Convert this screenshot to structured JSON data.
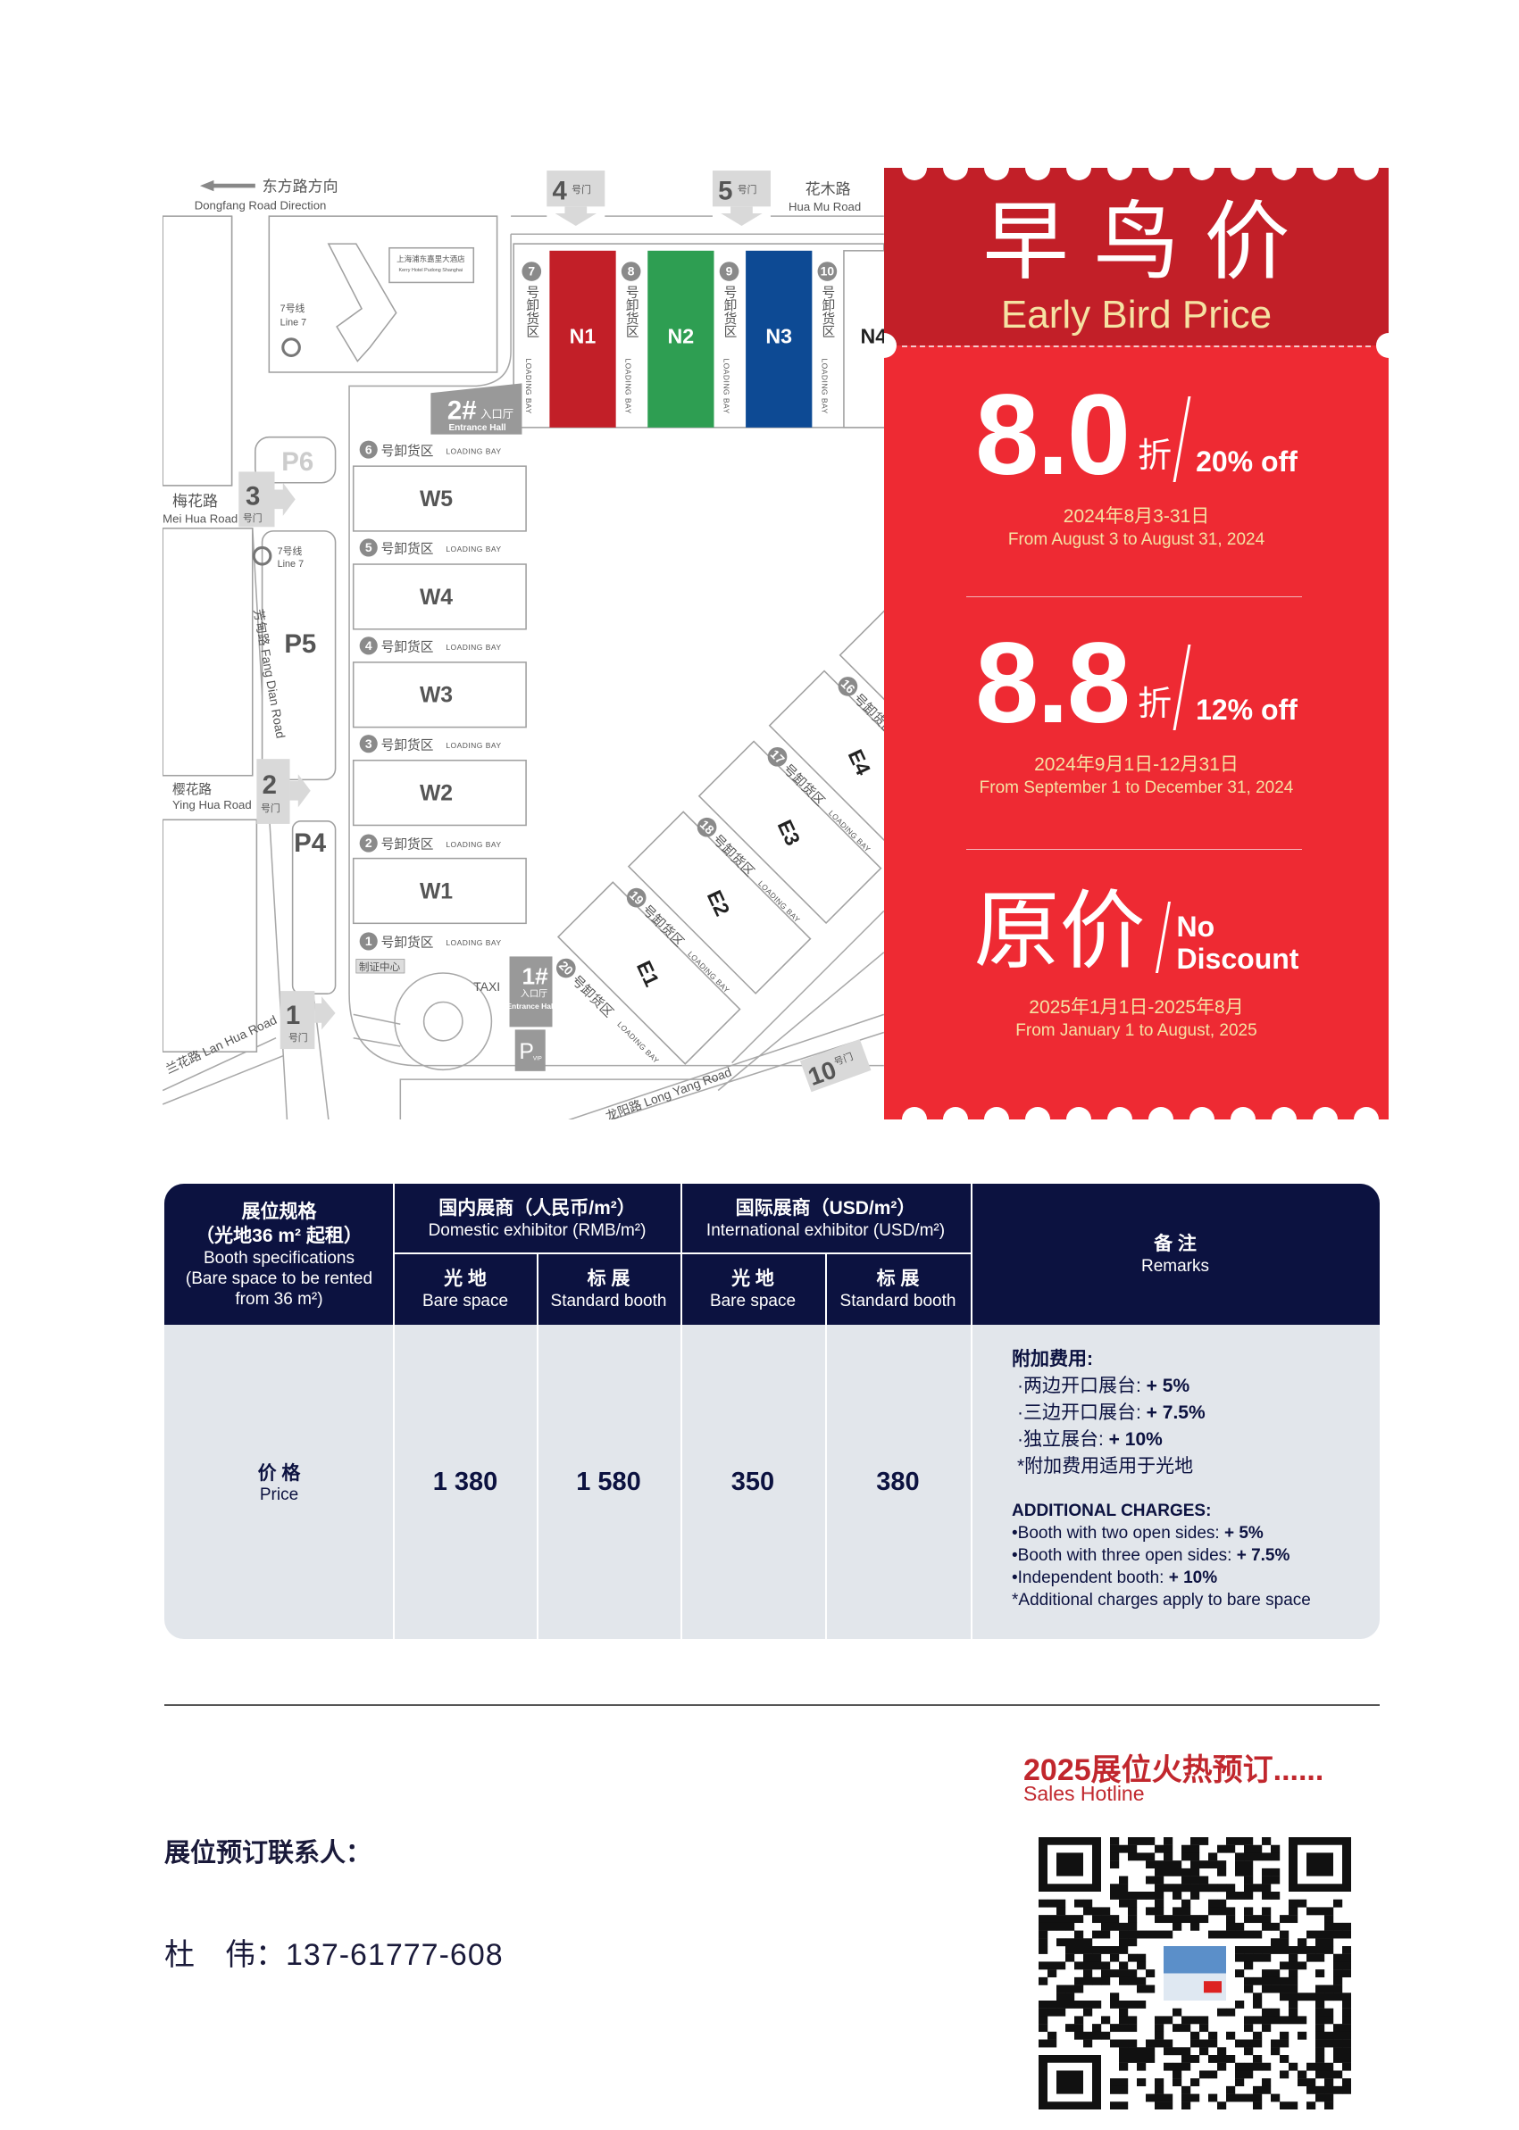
{
  "map": {
    "dongfang_cn": "东方路方向",
    "dongfang_en": "Dongfang Road Direction",
    "huamu_cn": "花木路",
    "huamu_en": "Hua Mu Road",
    "meihua_cn": "梅花路",
    "meihua_en": "Mei Hua Road",
    "yinghua_cn": "樱花路",
    "yinghua_en": "Ying Hua Road",
    "lanhua": "兰花路 Lan Hua Road",
    "fangdian": "芳甸路 Fang Dian Road",
    "longyang": "龙阳路 Long Yang Road",
    "gate_suffix": "号门",
    "gates": {
      "g1": "1",
      "g2": "2",
      "g3": "3",
      "g4": "4",
      "g5": "5",
      "g10": "10"
    },
    "hotel_cn": "上海浦东嘉里大酒店",
    "hotel_en": "Kerry Hotel Pudong Shanghai",
    "metro_cn": "7号线",
    "metro_en": "Line 7",
    "halls_n": [
      "N1",
      "N2",
      "N3",
      "N4"
    ],
    "halls_w": [
      "W5",
      "W4",
      "W3",
      "W2",
      "W1"
    ],
    "halls_e": [
      "E1",
      "E2",
      "E3",
      "E4"
    ],
    "hall_colors": {
      "N1": "#c21f28",
      "N2": "#2e9e52",
      "N3": "#0d4a94"
    },
    "bay_cn": "号卸货区",
    "bay_en": "LOADING BAY",
    "bays_n": [
      "7",
      "8",
      "9",
      "10"
    ],
    "bays_w": [
      "6",
      "5",
      "4",
      "3",
      "2",
      "1"
    ],
    "bays_e": [
      "20",
      "19",
      "18",
      "17",
      "16"
    ],
    "parking": [
      "P6",
      "P5",
      "P4"
    ],
    "entrance2_num": "2#",
    "entrance1_num": "1#",
    "entrance_cn": "入口厅",
    "entrance_en": "Entrance Hall",
    "badge_center": "制证中心",
    "taxi": "TAXI",
    "pvip_p": "P",
    "pvip_sub": "VIP"
  },
  "promo": {
    "title_cn": "早鸟价",
    "title_en": "Early Bird Price",
    "tiers": [
      {
        "value": "8.0",
        "unit": "折",
        "off": "20% off",
        "date_cn": "2024年8月3-31日",
        "date_en": "From August 3 to August 31, 2024"
      },
      {
        "value": "8.8",
        "unit": "折",
        "off": "12% off",
        "date_cn": "2024年9月1日-12月31日",
        "date_en": "From September 1 to December 31, 2024"
      }
    ],
    "regular": {
      "value": "原价",
      "off_1": "No",
      "off_2": "Discount",
      "date_cn": "2025年1月1日-2025年8月",
      "date_en": "From January 1 to August, 2025"
    },
    "colors": {
      "header": "#c21f28",
      "body": "#ee2a33",
      "gold": "#f5e2a3"
    }
  },
  "table": {
    "spec_cn1": "展位规格",
    "spec_cn2": "（光地36 m² 起租）",
    "spec_en1": "Booth specifications",
    "spec_en2": "(Bare space to be rented from 36 m²)",
    "domestic_cn": "国内展商（人民币/m²）",
    "domestic_en": "Domestic exhibitor (RMB/m²)",
    "intl_cn": "国际展商（USD/m²）",
    "intl_en": "International exhibitor (USD/m²)",
    "remarks_cn": "备 注",
    "remarks_en": "Remarks",
    "bare_cn": "光 地",
    "bare_en": "Bare space",
    "std_cn": "标 展",
    "std_en": "Standard booth",
    "price_cn": "价 格",
    "price_en": "Price",
    "prices": [
      "1 380",
      "1 580",
      "350",
      "380"
    ],
    "remarks": {
      "cn_title": "附加费用:",
      "cn_items": [
        [
          "·两边开口展台: ",
          "+ 5%"
        ],
        [
          "·三边开口展台: ",
          "+ 7.5%"
        ],
        [
          "·独立展台: ",
          "+ 10%"
        ]
      ],
      "cn_note": "*附加费用适用于光地",
      "en_title": "ADDITIONAL CHARGES:",
      "en_items": [
        [
          "•Booth with two open sides: ",
          "+ 5%"
        ],
        [
          "•Booth with three open sides: ",
          "+ 7.5%"
        ],
        [
          "•Independent booth: ",
          "+ 10%"
        ]
      ],
      "en_note": "*Additional charges apply to bare space"
    },
    "colors": {
      "header": "#0c1240",
      "body": "#e2e6eb"
    }
  },
  "footer": {
    "hotline_cn": "2025展位火热预订......",
    "hotline_en": "Sales Hotline",
    "contact_label": "展位预订联系人：",
    "contact_name": "杜　伟：",
    "contact_phone": "137-61777-608"
  }
}
